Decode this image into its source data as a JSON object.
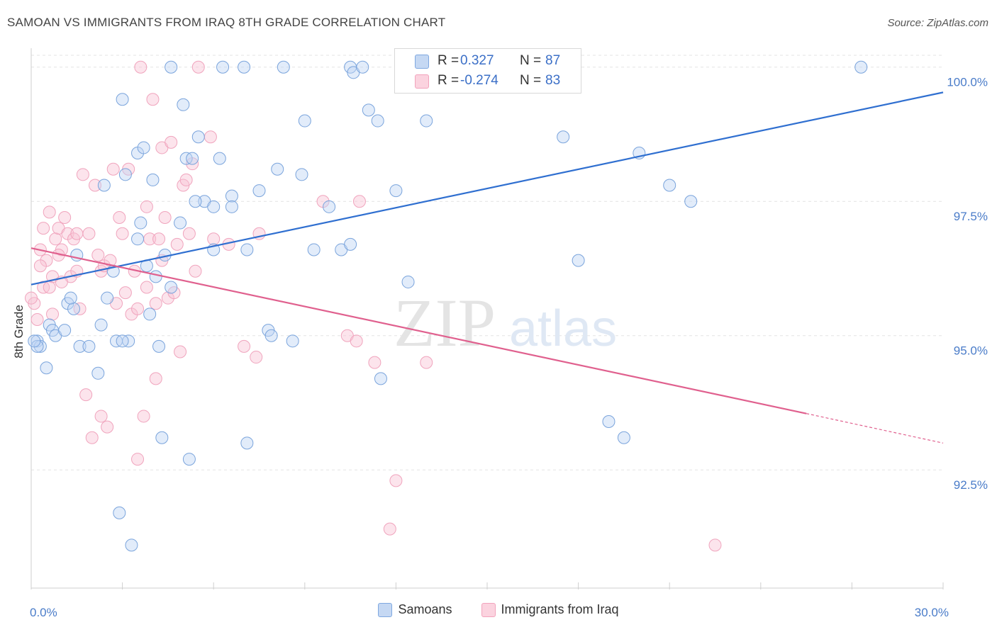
{
  "title": "SAMOAN VS IMMIGRANTS FROM IRAQ 8TH GRADE CORRELATION CHART",
  "source": "Source: ZipAtlas.com",
  "watermark": {
    "zip": "ZIP",
    "atlas": "atlas"
  },
  "colors": {
    "samoans": "#7fa8e0",
    "iraq": "#f2a3bc",
    "samoans_line": "#2f6fd0",
    "iraq_line": "#e0608e",
    "axis_text": "#4a7cc9"
  },
  "stats": {
    "samoans": {
      "r_label": "R =",
      "r_value": "0.327",
      "n_label": "N =",
      "n_value": "87"
    },
    "iraq": {
      "r_label": "R =",
      "r_value": "-0.274",
      "n_label": "N =",
      "n_value": "83"
    }
  },
  "legend": {
    "samoans": "Samoans",
    "iraq": "Immigrants from Iraq"
  },
  "chart_data": {
    "type": "scatter",
    "ylabel": "8th Grade",
    "xlim": [
      0,
      30
    ],
    "ylim": [
      90.3,
      100.3
    ],
    "x_tick_labels": [
      {
        "value": 0,
        "label": "0.0%"
      },
      {
        "value": 30,
        "label": "30.0%"
      }
    ],
    "y_tick_labels": [
      {
        "value": 92.5,
        "label": "92.5%"
      },
      {
        "value": 95.0,
        "label": "95.0%"
      },
      {
        "value": 97.5,
        "label": "97.5%"
      },
      {
        "value": 100.0,
        "label": "100.0%"
      }
    ],
    "grid": true,
    "legend_position": "bottom",
    "series": [
      {
        "name": "Samoans",
        "trend": {
          "x": [
            0,
            30
          ],
          "y": [
            95.95,
            99.53
          ]
        },
        "points": [
          [
            0.2,
            94.9
          ],
          [
            0.3,
            94.8
          ],
          [
            0.5,
            94.4
          ],
          [
            0.6,
            95.2
          ],
          [
            0.7,
            95.1
          ],
          [
            0.8,
            95.0
          ],
          [
            1.1,
            95.1
          ],
          [
            1.2,
            95.6
          ],
          [
            1.4,
            95.5
          ],
          [
            1.5,
            96.5
          ],
          [
            1.6,
            94.8
          ],
          [
            1.9,
            94.8
          ],
          [
            2.2,
            94.3
          ],
          [
            2.3,
            95.2
          ],
          [
            2.4,
            97.8
          ],
          [
            2.5,
            95.7
          ],
          [
            2.7,
            96.2
          ],
          [
            2.8,
            94.9
          ],
          [
            2.9,
            91.7
          ],
          [
            3.0,
            99.4
          ],
          [
            3.1,
            98.0
          ],
          [
            3.2,
            94.9
          ],
          [
            3.3,
            91.1
          ],
          [
            3.5,
            96.8
          ],
          [
            3.6,
            97.1
          ],
          [
            3.5,
            98.4
          ],
          [
            3.7,
            98.5
          ],
          [
            3.8,
            96.3
          ],
          [
            3.9,
            95.4
          ],
          [
            4.0,
            97.9
          ],
          [
            4.1,
            96.1
          ],
          [
            4.2,
            94.8
          ],
          [
            4.3,
            93.1
          ],
          [
            4.4,
            96.5
          ],
          [
            4.6,
            100.0
          ],
          [
            4.6,
            95.9
          ],
          [
            4.9,
            97.1
          ],
          [
            5.0,
            99.3
          ],
          [
            5.1,
            98.3
          ],
          [
            5.2,
            92.7
          ],
          [
            5.3,
            98.3
          ],
          [
            5.5,
            98.7
          ],
          [
            5.7,
            97.5
          ],
          [
            6.0,
            97.4
          ],
          [
            6.2,
            98.3
          ],
          [
            6.3,
            100.0
          ],
          [
            6.6,
            97.6
          ],
          [
            6.6,
            97.4
          ],
          [
            7.0,
            100.0
          ],
          [
            7.1,
            96.6
          ],
          [
            7.1,
            93.0
          ],
          [
            7.5,
            97.7
          ],
          [
            7.8,
            95.1
          ],
          [
            7.9,
            95.0
          ],
          [
            8.1,
            98.1
          ],
          [
            8.3,
            100.0
          ],
          [
            8.6,
            94.9
          ],
          [
            8.9,
            98.0
          ],
          [
            9.0,
            99.0
          ],
          [
            9.3,
            96.6
          ],
          [
            9.8,
            97.4
          ],
          [
            10.2,
            96.6
          ],
          [
            10.5,
            96.7
          ],
          [
            10.5,
            100.0
          ],
          [
            10.6,
            99.9
          ],
          [
            10.9,
            100.0
          ],
          [
            11.1,
            99.2
          ],
          [
            11.4,
            99.0
          ],
          [
            11.5,
            94.2
          ],
          [
            12.0,
            97.7
          ],
          [
            12.4,
            96.0
          ],
          [
            13.0,
            99.0
          ],
          [
            14.9,
            100.0
          ],
          [
            17.5,
            98.7
          ],
          [
            18.0,
            96.4
          ],
          [
            19.0,
            93.4
          ],
          [
            19.5,
            93.1
          ],
          [
            20.0,
            98.4
          ],
          [
            21.0,
            97.8
          ],
          [
            21.7,
            97.5
          ],
          [
            27.3,
            100.0
          ],
          [
            0.2,
            94.8
          ],
          [
            0.1,
            94.9
          ],
          [
            1.3,
            95.7
          ],
          [
            3.0,
            94.9
          ],
          [
            6.0,
            96.6
          ],
          [
            5.4,
            97.5
          ]
        ]
      },
      {
        "name": "Immigrants from Iraq",
        "trend": {
          "x": [
            0,
            25.5
          ],
          "y": [
            96.63,
            93.55
          ]
        },
        "trend_dashed": {
          "x": [
            25.5,
            30
          ],
          "y": [
            93.55,
            93.0
          ]
        },
        "points": [
          [
            0.1,
            95.6
          ],
          [
            0.2,
            95.3
          ],
          [
            0.3,
            96.6
          ],
          [
            0.4,
            95.9
          ],
          [
            0.5,
            96.4
          ],
          [
            0.6,
            97.3
          ],
          [
            0.7,
            96.1
          ],
          [
            0.8,
            96.8
          ],
          [
            0.9,
            97.0
          ],
          [
            1.0,
            96.6
          ],
          [
            1.1,
            97.2
          ],
          [
            1.2,
            96.9
          ],
          [
            1.3,
            96.1
          ],
          [
            1.4,
            96.8
          ],
          [
            1.5,
            96.9
          ],
          [
            1.6,
            95.5
          ],
          [
            1.7,
            98.0
          ],
          [
            1.8,
            93.9
          ],
          [
            1.9,
            96.9
          ],
          [
            2.0,
            93.1
          ],
          [
            2.1,
            97.8
          ],
          [
            2.2,
            96.5
          ],
          [
            2.3,
            96.2
          ],
          [
            2.4,
            96.3
          ],
          [
            2.5,
            93.3
          ],
          [
            2.7,
            98.1
          ],
          [
            2.8,
            95.6
          ],
          [
            2.9,
            97.2
          ],
          [
            3.0,
            96.9
          ],
          [
            3.1,
            95.8
          ],
          [
            3.2,
            98.1
          ],
          [
            3.3,
            95.4
          ],
          [
            3.4,
            96.2
          ],
          [
            3.5,
            92.7
          ],
          [
            3.6,
            100.0
          ],
          [
            3.7,
            93.5
          ],
          [
            3.8,
            97.4
          ],
          [
            3.9,
            96.8
          ],
          [
            4.0,
            99.4
          ],
          [
            4.1,
            94.2
          ],
          [
            4.2,
            96.8
          ],
          [
            4.3,
            98.5
          ],
          [
            4.4,
            97.2
          ],
          [
            4.5,
            95.7
          ],
          [
            4.6,
            98.6
          ],
          [
            4.7,
            95.8
          ],
          [
            4.8,
            96.7
          ],
          [
            4.9,
            94.7
          ],
          [
            5.0,
            97.8
          ],
          [
            5.1,
            97.9
          ],
          [
            5.2,
            96.9
          ],
          [
            5.3,
            98.2
          ],
          [
            5.4,
            96.2
          ],
          [
            5.5,
            100.0
          ],
          [
            5.9,
            98.7
          ],
          [
            6.0,
            96.8
          ],
          [
            6.5,
            96.7
          ],
          [
            7.0,
            94.8
          ],
          [
            7.4,
            94.6
          ],
          [
            7.5,
            96.9
          ],
          [
            9.6,
            97.5
          ],
          [
            10.4,
            95.0
          ],
          [
            10.7,
            94.9
          ],
          [
            10.8,
            97.5
          ],
          [
            11.3,
            94.5
          ],
          [
            12.0,
            92.3
          ],
          [
            11.8,
            91.4
          ],
          [
            13.0,
            94.5
          ],
          [
            22.5,
            91.1
          ],
          [
            0.0,
            95.7
          ],
          [
            0.3,
            96.3
          ],
          [
            0.6,
            95.9
          ],
          [
            2.3,
            93.5
          ],
          [
            3.5,
            95.5
          ],
          [
            4.1,
            95.6
          ],
          [
            1.0,
            96.0
          ],
          [
            2.6,
            96.4
          ],
          [
            3.8,
            95.9
          ],
          [
            1.5,
            96.2
          ],
          [
            0.7,
            95.4
          ],
          [
            4.3,
            96.4
          ],
          [
            0.9,
            96.5
          ],
          [
            0.4,
            97.0
          ]
        ]
      }
    ]
  }
}
